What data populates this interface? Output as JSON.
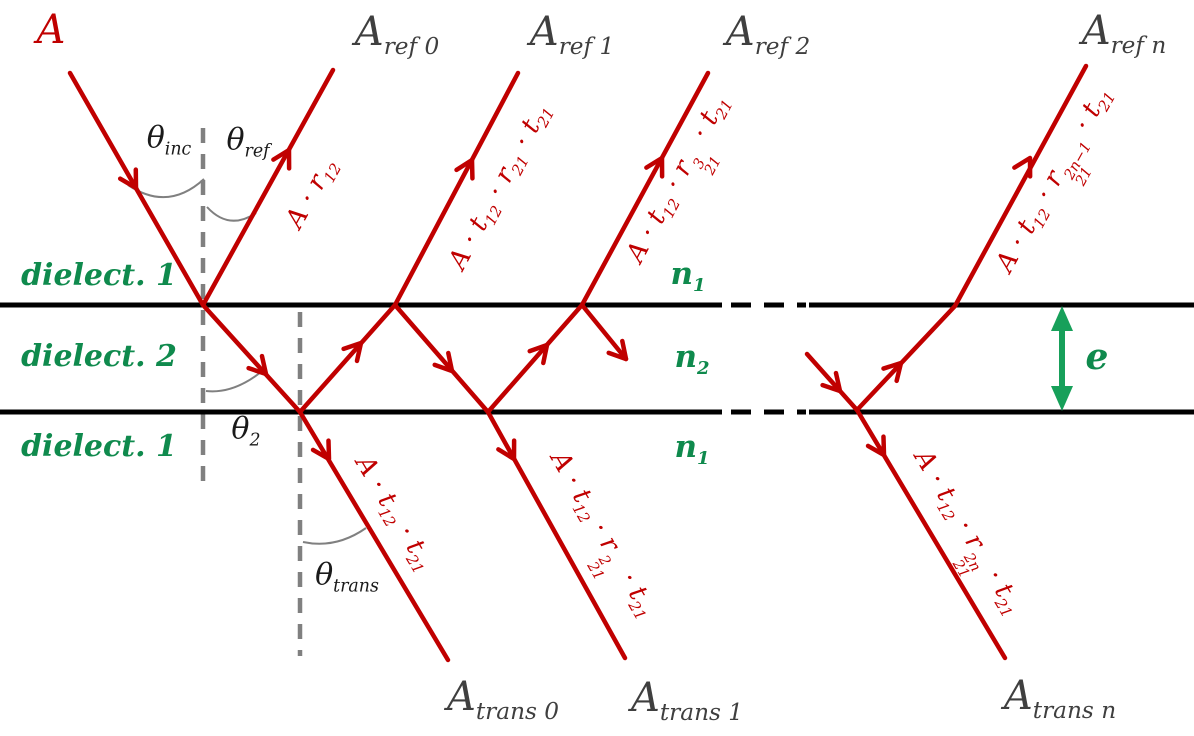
{
  "figure": {
    "source_amplitude": "A",
    "thickness_label": "e",
    "media": {
      "top": {
        "name": "dielect. 1",
        "index": [
          {
            "t": "n"
          },
          {
            "sub": "1"
          }
        ]
      },
      "middle": {
        "name": "dielect. 2",
        "index": [
          {
            "t": "n"
          },
          {
            "sub": "2"
          }
        ]
      },
      "bottom": {
        "name": "dielect. 1",
        "index": [
          {
            "t": "n"
          },
          {
            "sub": "1"
          }
        ]
      }
    },
    "angles": {
      "incidence": [
        {
          "t": "θ"
        },
        {
          "sub": "inc"
        }
      ],
      "reflection": [
        {
          "t": "θ"
        },
        {
          "sub": "ref"
        }
      ],
      "refraction": [
        {
          "t": "θ"
        },
        {
          "sub": "2"
        }
      ],
      "transmission": [
        {
          "t": "θ"
        },
        {
          "sub": "trans"
        }
      ]
    },
    "reflected_beams": [
      {
        "name": [
          {
            "t": "A"
          },
          {
            "sub": "ref 0"
          }
        ],
        "amplitude": [
          {
            "t": "A · r"
          },
          {
            "sub": "12"
          }
        ]
      },
      {
        "name": [
          {
            "t": "A"
          },
          {
            "sub": "ref 1"
          }
        ],
        "amplitude": [
          {
            "t": "A · t"
          },
          {
            "sub": "12"
          },
          {
            "t": " · r"
          },
          {
            "sub": "21"
          },
          {
            "t": " · t"
          },
          {
            "sub": "21"
          }
        ]
      },
      {
        "name": [
          {
            "t": "A"
          },
          {
            "sub": "ref 2"
          }
        ],
        "amplitude": [
          {
            "t": "A · t"
          },
          {
            "sub": "12"
          },
          {
            "t": " · r"
          },
          {
            "sup": "3",
            "sub": "21"
          },
          {
            "t": " · t"
          },
          {
            "sub": "21"
          }
        ]
      },
      {
        "name": [
          {
            "t": "A"
          },
          {
            "sub": "ref n"
          }
        ],
        "amplitude": [
          {
            "t": "A · t"
          },
          {
            "sub": "12"
          },
          {
            "t": " · r"
          },
          {
            "sup": "2n−1",
            "sub": "21"
          },
          {
            "t": " · t"
          },
          {
            "sub": "21"
          }
        ]
      }
    ],
    "transmitted_beams": [
      {
        "name": [
          {
            "t": "A"
          },
          {
            "sub": "trans 0"
          }
        ],
        "amplitude": [
          {
            "t": "A · t"
          },
          {
            "sub": "12"
          },
          {
            "t": " · t"
          },
          {
            "sub": "21"
          }
        ]
      },
      {
        "name": [
          {
            "t": "A"
          },
          {
            "sub": "trans 1"
          }
        ],
        "amplitude": [
          {
            "t": "A · t"
          },
          {
            "sub": "12"
          },
          {
            "t": " · r"
          },
          {
            "sup": "2",
            "sub": "21"
          },
          {
            "t": " · t"
          },
          {
            "sub": "21"
          }
        ]
      },
      {
        "name": [
          {
            "t": "A"
          },
          {
            "sub": "trans n"
          }
        ],
        "amplitude": [
          {
            "t": "A · t"
          },
          {
            "sub": "12"
          },
          {
            "t": " · r"
          },
          {
            "sup": "2n",
            "sub": "21"
          },
          {
            "t": " · t"
          },
          {
            "sub": "21"
          }
        ]
      }
    ],
    "colors": {
      "ray": "#c00000",
      "interface": "#000000",
      "normal": "#808080",
      "angle_arc": "#808080",
      "medium_text": "#0f8a4d",
      "thickness_arrow": "#17a05a",
      "amplitude_text": "#3f3f3f",
      "angle_text": "#1a1a1a"
    }
  }
}
